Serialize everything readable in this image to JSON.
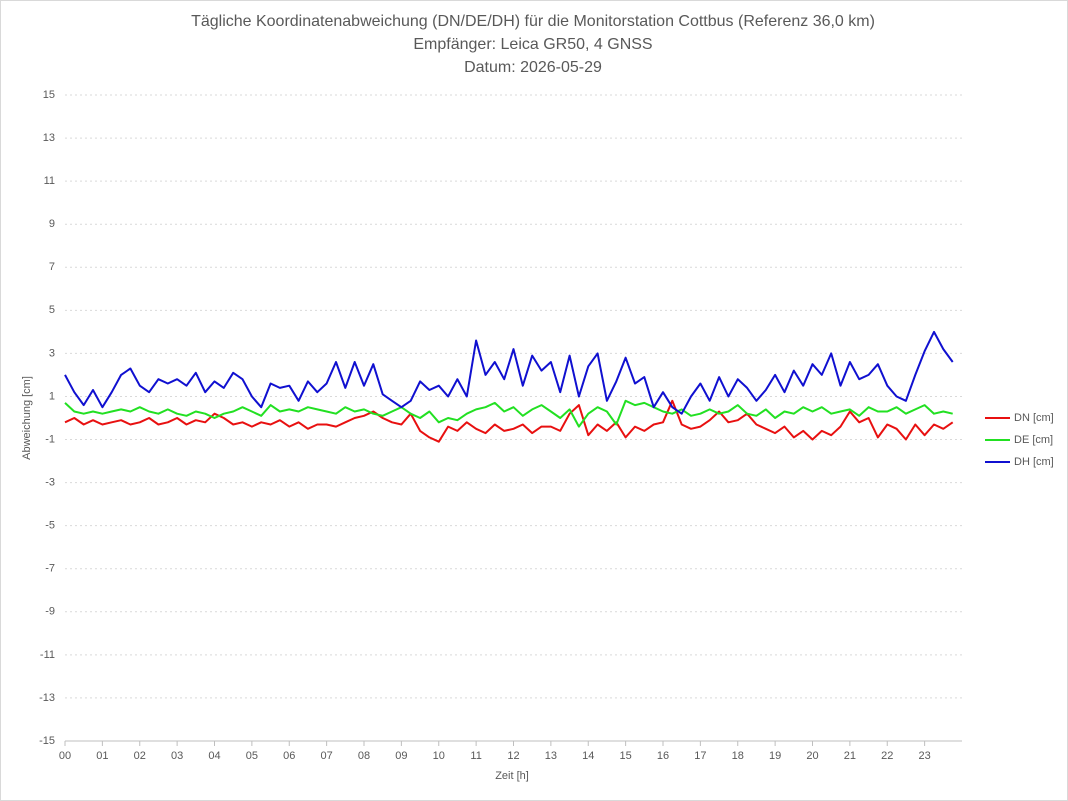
{
  "chart_data": {
    "type": "line",
    "title": "Tägliche Koordinatenabweichung (DN/DE/DH) für die Monitorstation Cottbus (Referenz 36,0 km)",
    "subtitle": [
      "Empfänger: Leica GR50, 4 GNSS",
      "Datum: 2026-05-29"
    ],
    "x_label": "Zeit [h]",
    "y_label": "Abweichung [cm]",
    "x": [
      0,
      0.25,
      0.5,
      0.75,
      1,
      1.25,
      1.5,
      1.75,
      2,
      2.25,
      2.5,
      2.75,
      3,
      3.25,
      3.5,
      3.75,
      4,
      4.25,
      4.5,
      4.75,
      5,
      5.25,
      5.5,
      5.75,
      6,
      6.25,
      6.5,
      6.75,
      7,
      7.25,
      7.5,
      7.75,
      8,
      8.25,
      8.5,
      8.75,
      9,
      9.25,
      9.5,
      9.75,
      10,
      10.25,
      10.5,
      10.75,
      11,
      11.25,
      11.5,
      11.75,
      12,
      12.25,
      12.5,
      12.75,
      13,
      13.25,
      13.5,
      13.75,
      14,
      14.25,
      14.5,
      14.75,
      15,
      15.25,
      15.5,
      15.75,
      16,
      16.25,
      16.5,
      16.75,
      17,
      17.25,
      17.5,
      17.75,
      18,
      18.25,
      18.5,
      18.75,
      19,
      19.25,
      19.5,
      19.75,
      20,
      20.25,
      20.5,
      20.75,
      21,
      21.25,
      21.5,
      21.75,
      22,
      22.25,
      22.5,
      22.75,
      23,
      23.25,
      23.5,
      23.75
    ],
    "series": [
      {
        "name": "DN [cm]",
        "color": "#e81010",
        "values": [
          -0.2,
          0.0,
          -0.3,
          -0.1,
          -0.3,
          -0.2,
          -0.1,
          -0.3,
          -0.2,
          0.0,
          -0.3,
          -0.2,
          0.0,
          -0.3,
          -0.1,
          -0.2,
          0.2,
          0.0,
          -0.3,
          -0.2,
          -0.4,
          -0.2,
          -0.3,
          -0.1,
          -0.4,
          -0.2,
          -0.5,
          -0.3,
          -0.3,
          -0.4,
          -0.2,
          0.0,
          0.1,
          0.3,
          0.0,
          -0.2,
          -0.3,
          0.2,
          -0.6,
          -0.9,
          -1.1,
          -0.4,
          -0.6,
          -0.2,
          -0.5,
          -0.7,
          -0.3,
          -0.6,
          -0.5,
          -0.3,
          -0.7,
          -0.4,
          -0.4,
          -0.6,
          0.2,
          0.6,
          -0.8,
          -0.3,
          -0.6,
          -0.2,
          -0.9,
          -0.4,
          -0.6,
          -0.3,
          -0.2,
          0.8,
          -0.3,
          -0.5,
          -0.4,
          -0.1,
          0.3,
          -0.2,
          -0.1,
          0.2,
          -0.3,
          -0.5,
          -0.7,
          -0.4,
          -0.9,
          -0.6,
          -1.0,
          -0.6,
          -0.8,
          -0.4,
          0.3,
          -0.2,
          0.0,
          -0.9,
          -0.3,
          -0.5,
          -1.0,
          -0.3,
          -0.8,
          -0.3,
          -0.5,
          -0.2
        ]
      },
      {
        "name": "DE [cm]",
        "color": "#22e022",
        "values": [
          0.7,
          0.3,
          0.2,
          0.3,
          0.2,
          0.3,
          0.4,
          0.3,
          0.5,
          0.3,
          0.2,
          0.4,
          0.2,
          0.1,
          0.3,
          0.2,
          0.0,
          0.2,
          0.3,
          0.5,
          0.3,
          0.1,
          0.6,
          0.3,
          0.4,
          0.3,
          0.5,
          0.4,
          0.3,
          0.2,
          0.5,
          0.3,
          0.4,
          0.2,
          0.1,
          0.3,
          0.5,
          0.2,
          0.0,
          0.3,
          -0.2,
          0.0,
          -0.1,
          0.2,
          0.4,
          0.5,
          0.7,
          0.3,
          0.5,
          0.1,
          0.4,
          0.6,
          0.3,
          0.0,
          0.4,
          -0.4,
          0.2,
          0.5,
          0.3,
          -0.3,
          0.8,
          0.6,
          0.7,
          0.5,
          0.3,
          0.2,
          0.4,
          0.1,
          0.2,
          0.4,
          0.2,
          0.3,
          0.6,
          0.2,
          0.1,
          0.4,
          0.0,
          0.3,
          0.2,
          0.5,
          0.3,
          0.5,
          0.2,
          0.3,
          0.4,
          0.1,
          0.5,
          0.3,
          0.3,
          0.5,
          0.2,
          0.4,
          0.6,
          0.2,
          0.3,
          0.2
        ]
      },
      {
        "name": "DH [cm]",
        "color": "#1010d0",
        "values": [
          2.0,
          1.2,
          0.6,
          1.3,
          0.5,
          1.2,
          2.0,
          2.3,
          1.5,
          1.2,
          1.8,
          1.6,
          1.8,
          1.5,
          2.1,
          1.2,
          1.7,
          1.4,
          2.1,
          1.8,
          1.0,
          0.5,
          1.6,
          1.4,
          1.5,
          0.8,
          1.7,
          1.2,
          1.6,
          2.6,
          1.4,
          2.6,
          1.5,
          2.5,
          1.1,
          0.8,
          0.5,
          0.8,
          1.7,
          1.3,
          1.5,
          1.0,
          1.8,
          1.0,
          3.6,
          2.0,
          2.6,
          1.8,
          3.2,
          1.5,
          2.9,
          2.2,
          2.6,
          1.2,
          2.9,
          1.0,
          2.4,
          3.0,
          0.8,
          1.7,
          2.8,
          1.6,
          1.9,
          0.5,
          1.2,
          0.5,
          0.2,
          1.0,
          1.6,
          0.8,
          1.9,
          1.0,
          1.8,
          1.4,
          0.8,
          1.3,
          2.0,
          1.2,
          2.2,
          1.5,
          2.5,
          2.0,
          3.0,
          1.5,
          2.6,
          1.8,
          2.0,
          2.5,
          1.5,
          1.0,
          0.8,
          2.0,
          3.1,
          4.0,
          3.2,
          2.6
        ]
      }
    ],
    "xlim": [
      0,
      24
    ],
    "xticks": [
      {
        "value": 0,
        "label": "00"
      },
      {
        "value": 1,
        "label": "01"
      },
      {
        "value": 2,
        "label": "02"
      },
      {
        "value": 3,
        "label": "03"
      },
      {
        "value": 4,
        "label": "04"
      },
      {
        "value": 5,
        "label": "05"
      },
      {
        "value": 6,
        "label": "06"
      },
      {
        "value": 7,
        "label": "07"
      },
      {
        "value": 8,
        "label": "08"
      },
      {
        "value": 9,
        "label": "09"
      },
      10,
      11,
      12,
      13,
      14,
      15,
      16,
      17,
      18,
      19,
      20,
      21,
      22,
      23
    ],
    "ylim": [
      -15,
      15
    ],
    "yticks": [
      -15,
      -13,
      -11,
      -9,
      -7,
      -5,
      -3,
      -1,
      1,
      3,
      5,
      7,
      9,
      11,
      13,
      15
    ],
    "grid": true,
    "legend": "right"
  }
}
